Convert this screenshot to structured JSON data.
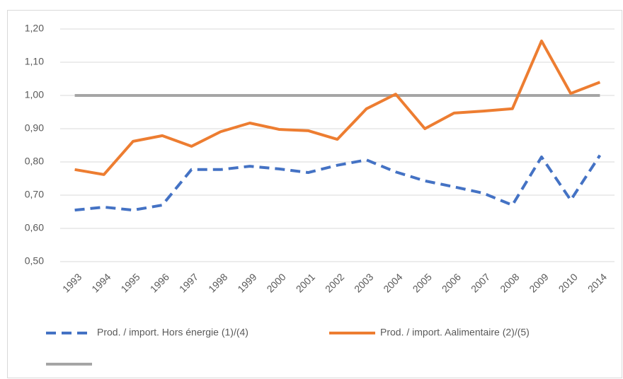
{
  "chart_data": {
    "type": "line",
    "categories": [
      "1993",
      "1994",
      "1995",
      "1996",
      "1997",
      "1998",
      "1999",
      "2000",
      "2001",
      "2002",
      "2003",
      "2004",
      "2005",
      "2006",
      "2007",
      "2008",
      "2009",
      "2010",
      "2014"
    ],
    "series": [
      {
        "name": "Prod. / import. Hors énergie (1)/(4)",
        "color": "#4472c4",
        "dash": true,
        "values": [
          0.655,
          0.664,
          0.655,
          0.67,
          0.777,
          0.777,
          0.787,
          0.779,
          0.768,
          0.79,
          0.806,
          0.77,
          0.743,
          0.725,
          0.706,
          0.67,
          0.815,
          0.685,
          0.82
        ]
      },
      {
        "name": "Prod. / import. Aalimentaire (2)/(5)",
        "color": "#ed7d31",
        "values": [
          0.777,
          0.762,
          0.862,
          0.879,
          0.847,
          0.891,
          0.917,
          0.898,
          0.894,
          0.868,
          0.96,
          1.004,
          0.9,
          0.947,
          0.953,
          0.96,
          1.164,
          1.006,
          1.04
        ]
      },
      {
        "color": "#a5a5a5",
        "values": [
          1,
          1,
          1,
          1,
          1,
          1,
          1,
          1,
          1,
          1,
          1,
          1,
          1,
          1,
          1,
          1,
          1,
          1,
          1
        ]
      }
    ],
    "ylim": [
      0.5,
      1.2
    ],
    "yticks": [
      {
        "value": 0.5,
        "label": "0,50"
      },
      {
        "value": 0.6,
        "label": "0,60"
      },
      {
        "value": 0.7,
        "label": "0,70"
      },
      {
        "value": 0.8,
        "label": "0,80"
      },
      {
        "value": 0.9,
        "label": "0,90"
      },
      {
        "value": 1.0,
        "label": "1,00"
      },
      {
        "value": 1.1,
        "label": "1,10"
      },
      {
        "value": 1.2,
        "label": "1,20"
      }
    ],
    "grid": true
  }
}
